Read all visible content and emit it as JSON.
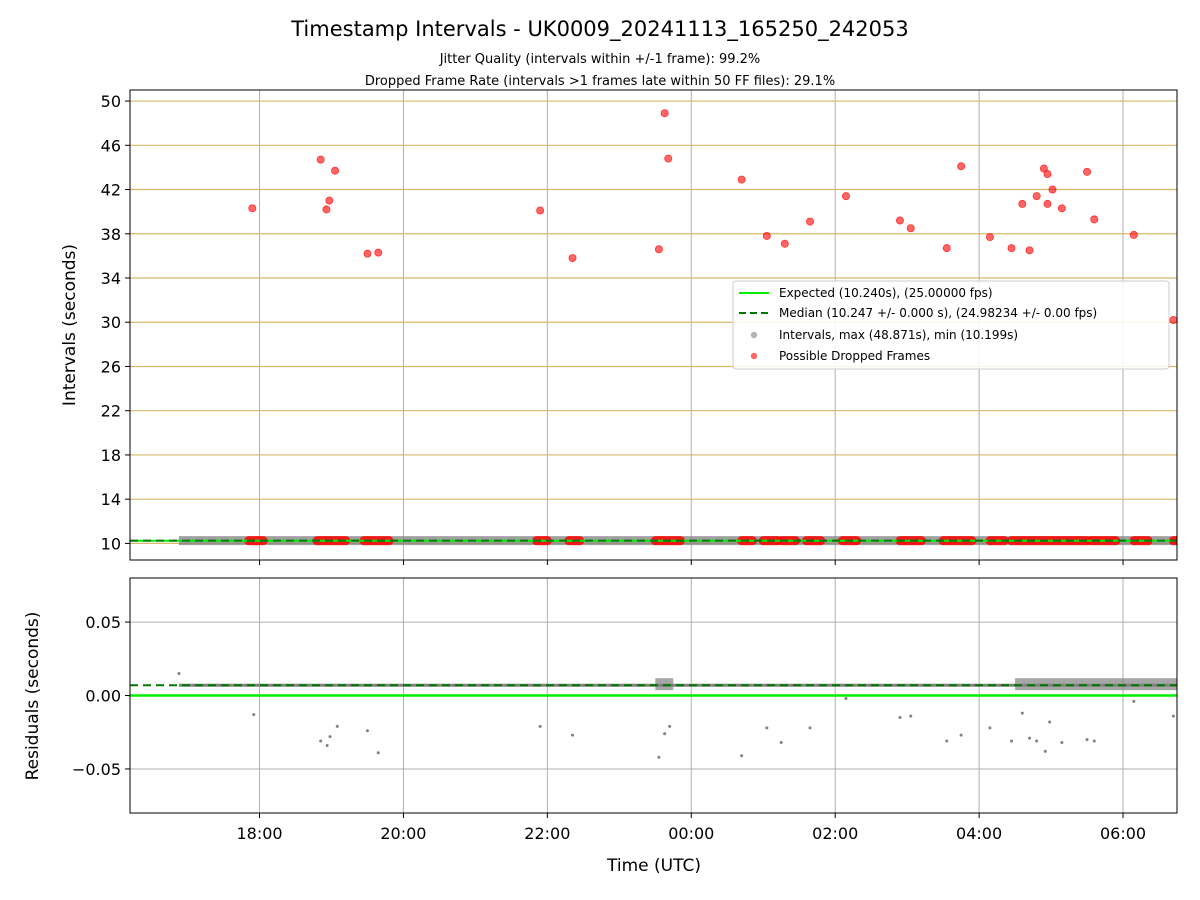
{
  "chart_data": [
    {
      "type": "scatter",
      "title": "Timestamp Intervals - UK0009_20241113_165250_242053",
      "subtitle_1": "Jitter Quality (intervals within +/-1 frame): 99.2%",
      "subtitle_2": "Dropped Frame Rate (intervals >1 frames late within 50 FF files): 29.1%",
      "ylabel": "Intervals (seconds)",
      "ylim": [
        8.5,
        51
      ],
      "yticks": [
        10,
        14,
        18,
        22,
        26,
        30,
        34,
        38,
        42,
        46,
        50
      ],
      "x_unit": "hours since 16:12 UTC (axis start)",
      "xlim": [
        0,
        14.55
      ],
      "grid": true,
      "legend_position": "center-right",
      "legend": [
        "Expected (10.240s), (25.00000 fps)",
        "Median (10.247 +/- 0.000 s), (24.98234 +/- 0.00 fps)",
        "Intervals, max (48.871s), min (10.199s)",
        "Possible Dropped Frames"
      ],
      "expected_interval": 10.24,
      "median_interval": 10.247,
      "interval_range_x": [
        0.68,
        14.55
      ],
      "dropped_frames_high": [
        {
          "x": 1.7,
          "y": 40.3
        },
        {
          "x": 2.65,
          "y": 44.7
        },
        {
          "x": 2.77,
          "y": 41.0
        },
        {
          "x": 2.73,
          "y": 40.2
        },
        {
          "x": 2.85,
          "y": 43.7
        },
        {
          "x": 3.3,
          "y": 36.2
        },
        {
          "x": 3.45,
          "y": 36.3
        },
        {
          "x": 5.7,
          "y": 40.1
        },
        {
          "x": 6.15,
          "y": 35.8
        },
        {
          "x": 7.35,
          "y": 36.6
        },
        {
          "x": 7.43,
          "y": 48.9
        },
        {
          "x": 7.48,
          "y": 44.8
        },
        {
          "x": 8.5,
          "y": 42.9
        },
        {
          "x": 8.85,
          "y": 37.8
        },
        {
          "x": 9.1,
          "y": 37.1
        },
        {
          "x": 9.45,
          "y": 39.1
        },
        {
          "x": 9.95,
          "y": 41.4
        },
        {
          "x": 10.7,
          "y": 39.2
        },
        {
          "x": 10.85,
          "y": 38.5
        },
        {
          "x": 11.35,
          "y": 36.7
        },
        {
          "x": 11.55,
          "y": 44.1
        },
        {
          "x": 11.95,
          "y": 37.7
        },
        {
          "x": 12.25,
          "y": 36.7
        },
        {
          "x": 12.4,
          "y": 40.7
        },
        {
          "x": 12.5,
          "y": 36.5
        },
        {
          "x": 12.6,
          "y": 41.4
        },
        {
          "x": 12.7,
          "y": 43.9
        },
        {
          "x": 12.75,
          "y": 43.4
        },
        {
          "x": 12.75,
          "y": 40.7
        },
        {
          "x": 12.82,
          "y": 42.0
        },
        {
          "x": 12.95,
          "y": 40.3
        },
        {
          "x": 13.3,
          "y": 43.6
        },
        {
          "x": 13.4,
          "y": 39.3
        },
        {
          "x": 13.95,
          "y": 37.9
        },
        {
          "x": 14.5,
          "y": 30.2
        }
      ],
      "dropped_frames_base_ranges": [
        [
          1.65,
          1.85
        ],
        [
          2.6,
          3.0
        ],
        [
          3.25,
          3.6
        ],
        [
          5.65,
          5.8
        ],
        [
          6.1,
          6.25
        ],
        [
          7.3,
          7.65
        ],
        [
          8.5,
          8.65
        ],
        [
          8.8,
          9.0
        ],
        [
          9.05,
          9.25
        ],
        [
          9.4,
          9.6
        ],
        [
          9.9,
          10.1
        ],
        [
          10.7,
          11.0
        ],
        [
          11.3,
          11.7
        ],
        [
          11.95,
          12.15
        ],
        [
          12.25,
          13.3
        ],
        [
          13.35,
          13.7
        ],
        [
          13.95,
          14.15
        ],
        [
          14.5,
          14.55
        ]
      ]
    },
    {
      "type": "scatter",
      "xlabel": "Time (UTC)",
      "ylabel": "Residuals (seconds)",
      "ylim": [
        -0.08,
        0.08
      ],
      "yticks": [
        -0.05,
        0.0,
        0.05
      ],
      "ytick_labels": [
        "−0.05",
        "0.00",
        "0.05"
      ],
      "xticks": [
        1.8,
        3.8,
        5.8,
        7.8,
        9.8,
        11.8,
        13.8
      ],
      "xtick_labels": [
        "18:00",
        "20:00",
        "22:00",
        "00:00",
        "02:00",
        "04:00",
        "06:00"
      ],
      "xlim": [
        0,
        14.55
      ],
      "grid": true,
      "expected_residual": 0.0,
      "median_residual": 0.007,
      "typical_residual": 0.007,
      "outliers": [
        {
          "x": 0.68,
          "y": 0.015
        },
        {
          "x": 1.72,
          "y": -0.013
        },
        {
          "x": 2.65,
          "y": -0.031
        },
        {
          "x": 2.78,
          "y": -0.028
        },
        {
          "x": 2.74,
          "y": -0.034
        },
        {
          "x": 2.88,
          "y": -0.021
        },
        {
          "x": 3.3,
          "y": -0.024
        },
        {
          "x": 3.45,
          "y": -0.039
        },
        {
          "x": 5.7,
          "y": -0.021
        },
        {
          "x": 6.15,
          "y": -0.027
        },
        {
          "x": 7.35,
          "y": -0.042
        },
        {
          "x": 7.43,
          "y": -0.026
        },
        {
          "x": 7.5,
          "y": -0.021
        },
        {
          "x": 8.5,
          "y": -0.041
        },
        {
          "x": 8.85,
          "y": -0.022
        },
        {
          "x": 9.05,
          "y": -0.032
        },
        {
          "x": 9.45,
          "y": -0.022
        },
        {
          "x": 9.95,
          "y": -0.002
        },
        {
          "x": 10.7,
          "y": -0.015
        },
        {
          "x": 10.85,
          "y": -0.014
        },
        {
          "x": 11.35,
          "y": -0.031
        },
        {
          "x": 11.55,
          "y": -0.027
        },
        {
          "x": 11.95,
          "y": -0.022
        },
        {
          "x": 12.25,
          "y": -0.031
        },
        {
          "x": 12.4,
          "y": -0.012
        },
        {
          "x": 12.5,
          "y": -0.029
        },
        {
          "x": 12.6,
          "y": -0.031
        },
        {
          "x": 12.72,
          "y": -0.038
        },
        {
          "x": 12.78,
          "y": -0.018
        },
        {
          "x": 12.95,
          "y": -0.032
        },
        {
          "x": 13.3,
          "y": -0.03
        },
        {
          "x": 13.4,
          "y": -0.031
        },
        {
          "x": 13.95,
          "y": -0.004
        },
        {
          "x": 14.5,
          "y": -0.014
        }
      ]
    }
  ],
  "colors": {
    "expected": "#00ee00",
    "median": "#007700",
    "dropped": "#ff0000",
    "intervals": "#808080",
    "hgrid_top": "#d4b96a",
    "grid": "#b0b0b0"
  }
}
